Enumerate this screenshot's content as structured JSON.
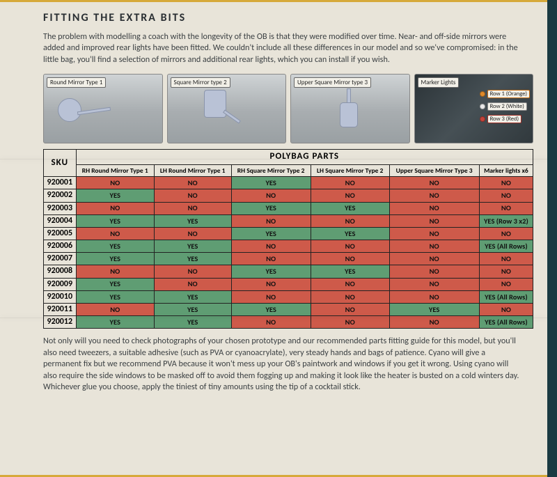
{
  "heading": "FITTING THE EXTRA BITS",
  "intro": "The problem with modelling a coach with the longevity of the OB is that they were modified over time. Near- and off-side mirrors were added and improved rear lights have been fitted. We couldn't include all these differences in our model and so we've compromised: in the little bag, you'll find a selection of mirrors and additional rear lights, which you can install if you wish.",
  "thumbs": {
    "a": "Round Mirror Type 1",
    "b": "Square Mirror type 2",
    "c": "Upper Square Mirror type 3",
    "d": "Marker Lights",
    "rows": {
      "r1": {
        "label": "Row 1 (Orange)",
        "color": "#e08a2a",
        "border": "#c96f14"
      },
      "r2": {
        "label": "Row 2 (White)",
        "color": "#e9e9e9",
        "border": "#888888"
      },
      "r3": {
        "label": "Row 3 (Red)",
        "color": "#c4433a",
        "border": "#a23028"
      }
    }
  },
  "table": {
    "title": "POLYBAG PARTS",
    "sku_header": "SKU",
    "columns": [
      "RH Round Mirror Type 1",
      "LH Round Mirror Type 1",
      "RH Square Mirror Type 2",
      "LH Square Mirror Type 2",
      "Upper Square Mirror Type 3",
      "Marker lights x6"
    ],
    "rows": [
      {
        "sku": "920001",
        "cells": [
          {
            "t": "NO",
            "v": 0
          },
          {
            "t": "NO",
            "v": 0
          },
          {
            "t": "YES",
            "v": 1
          },
          {
            "t": "NO",
            "v": 0
          },
          {
            "t": "NO",
            "v": 0
          },
          {
            "t": "NO",
            "v": 0
          }
        ]
      },
      {
        "sku": "920002",
        "cells": [
          {
            "t": "YES",
            "v": 1
          },
          {
            "t": "NO",
            "v": 0
          },
          {
            "t": "NO",
            "v": 0
          },
          {
            "t": "NO",
            "v": 0
          },
          {
            "t": "NO",
            "v": 0
          },
          {
            "t": "NO",
            "v": 0
          }
        ]
      },
      {
        "sku": "920003",
        "cells": [
          {
            "t": "NO",
            "v": 0
          },
          {
            "t": "NO",
            "v": 0
          },
          {
            "t": "YES",
            "v": 1
          },
          {
            "t": "YES",
            "v": 1
          },
          {
            "t": "NO",
            "v": 0
          },
          {
            "t": "NO",
            "v": 0
          }
        ]
      },
      {
        "sku": "920004",
        "cells": [
          {
            "t": "YES",
            "v": 1
          },
          {
            "t": "YES",
            "v": 1
          },
          {
            "t": "NO",
            "v": 0
          },
          {
            "t": "NO",
            "v": 0
          },
          {
            "t": "NO",
            "v": 0
          },
          {
            "t": "YES (Row 3 x2)",
            "v": 1
          }
        ]
      },
      {
        "sku": "920005",
        "cells": [
          {
            "t": "NO",
            "v": 0
          },
          {
            "t": "NO",
            "v": 0
          },
          {
            "t": "YES",
            "v": 1
          },
          {
            "t": "YES",
            "v": 1
          },
          {
            "t": "NO",
            "v": 0
          },
          {
            "t": "NO",
            "v": 0
          }
        ]
      },
      {
        "sku": "920006",
        "cells": [
          {
            "t": "YES",
            "v": 1
          },
          {
            "t": "YES",
            "v": 1
          },
          {
            "t": "NO",
            "v": 0
          },
          {
            "t": "NO",
            "v": 0
          },
          {
            "t": "NO",
            "v": 0
          },
          {
            "t": "YES (All Rows)",
            "v": 1
          }
        ]
      },
      {
        "sku": "920007",
        "cells": [
          {
            "t": "YES",
            "v": 1
          },
          {
            "t": "YES",
            "v": 1
          },
          {
            "t": "NO",
            "v": 0
          },
          {
            "t": "NO",
            "v": 0
          },
          {
            "t": "NO",
            "v": 0
          },
          {
            "t": "NO",
            "v": 0
          }
        ]
      },
      {
        "sku": "920008",
        "cells": [
          {
            "t": "NO",
            "v": 0
          },
          {
            "t": "NO",
            "v": 0
          },
          {
            "t": "YES",
            "v": 1
          },
          {
            "t": "YES",
            "v": 1
          },
          {
            "t": "NO",
            "v": 0
          },
          {
            "t": "NO",
            "v": 0
          }
        ]
      },
      {
        "sku": "920009",
        "cells": [
          {
            "t": "YES",
            "v": 1
          },
          {
            "t": "NO",
            "v": 0
          },
          {
            "t": "NO",
            "v": 0
          },
          {
            "t": "NO",
            "v": 0
          },
          {
            "t": "NO",
            "v": 0
          },
          {
            "t": "NO",
            "v": 0
          }
        ]
      },
      {
        "sku": "920010",
        "cells": [
          {
            "t": "YES",
            "v": 1
          },
          {
            "t": "YES",
            "v": 1
          },
          {
            "t": "NO",
            "v": 0
          },
          {
            "t": "NO",
            "v": 0
          },
          {
            "t": "NO",
            "v": 0
          },
          {
            "t": "YES (All Rows)",
            "v": 1
          }
        ]
      },
      {
        "sku": "920011",
        "cells": [
          {
            "t": "NO",
            "v": 0
          },
          {
            "t": "YES",
            "v": 1
          },
          {
            "t": "YES",
            "v": 1
          },
          {
            "t": "NO",
            "v": 0
          },
          {
            "t": "YES",
            "v": 1
          },
          {
            "t": "NO",
            "v": 0
          }
        ]
      },
      {
        "sku": "920012",
        "cells": [
          {
            "t": "YES",
            "v": 1
          },
          {
            "t": "YES",
            "v": 1
          },
          {
            "t": "NO",
            "v": 0
          },
          {
            "t": "NO",
            "v": 0
          },
          {
            "t": "NO",
            "v": 0
          },
          {
            "t": "YES (All Rows)",
            "v": 1
          }
        ]
      }
    ],
    "colors": {
      "yes": "#5f9d73",
      "no": "#ce5a4a"
    }
  },
  "outro": "Not only will you need to check photographs of your chosen prototype and our recommended parts fitting guide for this model, but you'll also need tweezers, a suitable adhesive (such as PVA or cyanoacrylate), very steady hands and bags of patience. Cyano will give a permanent fix but we recommend PVA because it won't mess up your OB's paintwork and windows if you get it wrong. Using cyano will also require the side windows to be masked off to avoid them fogging up and making it look like the heater is busted on a cold winters day. Whichever glue you choose, apply the tiniest of tiny amounts using the tip of a cocktail stick."
}
